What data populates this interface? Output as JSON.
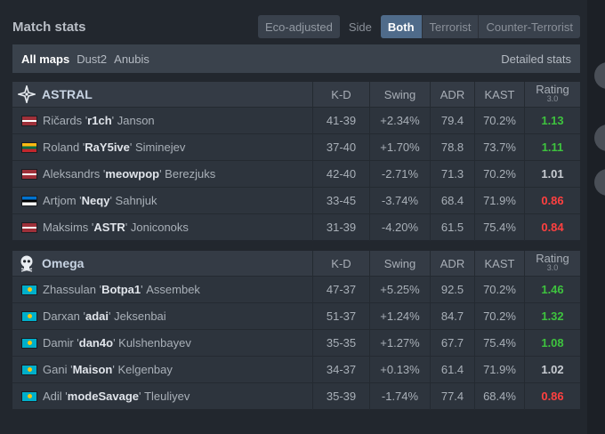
{
  "header": {
    "title": "Match stats",
    "eco_label": "Eco-adjusted",
    "side_label": "Side",
    "side_options": [
      "Both",
      "Terrorist",
      "Counter-Terrorist"
    ],
    "side_selected": "Both"
  },
  "maps": {
    "items": [
      "All maps",
      "Dust2",
      "Anubis"
    ],
    "selected": "All maps",
    "detailed_label": "Detailed stats"
  },
  "columns": {
    "kd": "K-D",
    "swing": "Swing",
    "adr": "ADR",
    "kast": "KAST",
    "rating": "Rating",
    "rating_sub": "3.0"
  },
  "colors": {
    "positive": "#3ec33e",
    "negative": "#ff4040",
    "accent": "#4f6b8a"
  },
  "teams": [
    {
      "name": "ASTRAL",
      "logo": "astral-star-icon",
      "players": [
        {
          "first": "Ričards",
          "nick": "r1ch",
          "last": "Janson",
          "flag": "latvia",
          "kd": "41-39",
          "swing": "+2.34%",
          "adr": "79.4",
          "kast": "70.2%",
          "rating": "1.13"
        },
        {
          "first": "Roland",
          "nick": "RaY5ive",
          "last": "Siminejev",
          "flag": "lithuania",
          "kd": "37-40",
          "swing": "+1.70%",
          "adr": "78.8",
          "kast": "73.7%",
          "rating": "1.11"
        },
        {
          "first": "Aleksandrs",
          "nick": "meowpop",
          "last": "Berezjuks",
          "flag": "latvia",
          "kd": "42-40",
          "swing": "-2.71%",
          "adr": "71.3",
          "kast": "70.2%",
          "rating": "1.01"
        },
        {
          "first": "Artjom",
          "nick": "Neqy",
          "last": "Sahnjuk",
          "flag": "estonia",
          "kd": "33-45",
          "swing": "-3.74%",
          "adr": "68.4",
          "kast": "71.9%",
          "rating": "0.86"
        },
        {
          "first": "Maksims",
          "nick": "ASTR",
          "last": "Joniconoks",
          "flag": "latvia",
          "kd": "31-39",
          "swing": "-4.20%",
          "adr": "61.5",
          "kast": "75.4%",
          "rating": "0.84"
        }
      ]
    },
    {
      "name": "Omega",
      "logo": "omega-skull-icon",
      "players": [
        {
          "first": "Zhassulan",
          "nick": "Botpa1",
          "last": "Assembek",
          "flag": "kazakhstan",
          "kd": "47-37",
          "swing": "+5.25%",
          "adr": "92.5",
          "kast": "70.2%",
          "rating": "1.46"
        },
        {
          "first": "Darxan",
          "nick": "adai",
          "last": "Jeksenbai",
          "flag": "kazakhstan",
          "kd": "51-37",
          "swing": "+1.24%",
          "adr": "84.7",
          "kast": "70.2%",
          "rating": "1.32"
        },
        {
          "first": "Damir",
          "nick": "dan4o",
          "last": "Kulshenbayev",
          "flag": "kazakhstan",
          "kd": "35-35",
          "swing": "+1.27%",
          "adr": "67.7",
          "kast": "75.4%",
          "rating": "1.08"
        },
        {
          "first": "Gani",
          "nick": "Maison",
          "last": "Kelgenbay",
          "flag": "kazakhstan",
          "kd": "34-37",
          "swing": "+0.13%",
          "adr": "61.4",
          "kast": "71.9%",
          "rating": "1.02"
        },
        {
          "first": "Adil",
          "nick": "modeSavage",
          "last": "Tleuliyev",
          "flag": "kazakhstan",
          "kd": "35-39",
          "swing": "-1.74%",
          "adr": "77.4",
          "kast": "68.4%",
          "rating": "0.86"
        }
      ]
    }
  ]
}
